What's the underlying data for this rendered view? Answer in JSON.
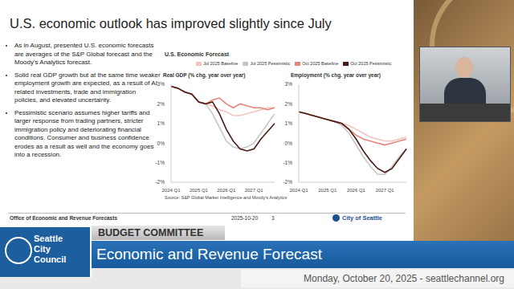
{
  "slide": {
    "title": "U.S. economic outlook has improved slightly since July",
    "bullets": [
      "As in August, presented U.S. economic forecasts are averages of the S&P Global forecast and the Moody's Analytics forecast.",
      "Solid real GDP growth but at the same time weaker employment growth are expected, as a result of AI related investments, trade and immigration policies, and elevated uncertainty.",
      "Pessimistic scenario assumes higher tariffs and larger response from trading partners, stricter immigration policy and deteriorating financial conditions. Consumer and business confidence erodes as a result as well and the economy goes into a recession."
    ],
    "panel_title": "U.S. Economic Forecast",
    "source": "Source: S&P Global Market Intelligence and Moody's Analytics",
    "footer": {
      "office": "Office of Economic and Revenue Forecasts",
      "date": "2025-10-20",
      "page": "3",
      "logo": "City of Seattle"
    }
  },
  "broadcast": {
    "logo": "Seattle City Council",
    "committee": "BUDGET COMMITTEE",
    "headline": "Economic and Revenue Forecast",
    "date_line": "Monday, October 20, 2025 - seattlechannel.org"
  },
  "chart_data": [
    {
      "type": "line",
      "title": "Real GDP (% chg. year over year)",
      "categories": [
        "2024 Q1",
        null,
        null,
        null,
        "2025 Q1",
        null,
        null,
        null,
        "2026 Q1",
        null,
        null,
        null,
        "2027 Q1",
        null,
        null,
        null
      ],
      "series": [
        {
          "name": "Jul 2025 Baseline",
          "color": "#f3c4bf",
          "values": [
            2.9,
            2.8,
            2.6,
            2.5,
            2.1,
            2.0,
            1.9,
            1.7,
            1.6,
            1.4,
            1.4,
            1.5,
            1.6,
            1.7,
            1.8,
            1.8
          ]
        },
        {
          "name": "Jul 2025 Pessimistic",
          "color": "#c6c6c6",
          "values": [
            2.9,
            2.8,
            2.6,
            2.5,
            2.1,
            2.0,
            1.5,
            0.8,
            0.1,
            -0.2,
            -0.3,
            -0.2,
            0.0,
            0.5,
            1.0,
            1.5
          ]
        },
        {
          "name": "Oct 2025 Baseline",
          "color": "#e8847b",
          "values": [
            2.9,
            2.8,
            2.6,
            2.5,
            2.1,
            2.0,
            2.2,
            2.3,
            2.0,
            1.8,
            2.0,
            1.9,
            1.8,
            1.8,
            1.7,
            1.8
          ]
        },
        {
          "name": "Oct 2025 Pessimistic",
          "color": "#4a1c15",
          "values": [
            2.9,
            2.8,
            2.6,
            2.5,
            2.1,
            2.0,
            2.1,
            1.5,
            0.7,
            0.1,
            -0.3,
            -0.4,
            -0.3,
            0.2,
            0.6,
            1.0
          ]
        }
      ],
      "ylim": [
        -2,
        3
      ],
      "yticks": [
        {
          "value": 3,
          "label": "3%"
        },
        {
          "value": 2,
          "label": "2%"
        },
        {
          "value": 1,
          "label": "1%"
        },
        {
          "value": 0,
          "label": "0%"
        },
        {
          "value": -1,
          "label": "-1%"
        },
        {
          "value": -2,
          "label": "-2%"
        }
      ],
      "grid": false,
      "legend": "top"
    },
    {
      "type": "line",
      "title": "Employment (% chg. year over year)",
      "categories": [
        "2024 Q1",
        null,
        null,
        null,
        "2025 Q1",
        null,
        null,
        null,
        "2026 Q1",
        null,
        null,
        null,
        "2027 Q1",
        null,
        null,
        null
      ],
      "series": [
        {
          "name": "Jul 2025 Baseline",
          "color": "#f3c4bf",
          "values": [
            1.6,
            1.5,
            1.4,
            1.3,
            1.2,
            1.1,
            1.0,
            0.9,
            0.7,
            0.5,
            0.3,
            0.2,
            0.1,
            0.1,
            0.2,
            0.3
          ]
        },
        {
          "name": "Jul 2025 Pessimistic",
          "color": "#c6c6c6",
          "values": [
            1.6,
            1.5,
            1.4,
            1.3,
            1.2,
            1.1,
            0.9,
            0.5,
            -0.1,
            -0.7,
            -1.2,
            -1.6,
            -1.6,
            -1.2,
            -0.7,
            -0.3
          ]
        },
        {
          "name": "Oct 2025 Baseline",
          "color": "#e8847b",
          "values": [
            1.6,
            1.5,
            1.4,
            1.3,
            1.2,
            1.1,
            1.0,
            0.7,
            0.4,
            0.2,
            0.1,
            0.0,
            -0.1,
            0.0,
            0.1,
            0.2
          ]
        },
        {
          "name": "Oct 2025 Pessimistic",
          "color": "#4a1c15",
          "values": [
            1.6,
            1.5,
            1.4,
            1.3,
            1.2,
            1.1,
            1.0,
            0.7,
            0.2,
            -0.4,
            -0.9,
            -1.3,
            -1.5,
            -1.3,
            -0.8,
            -0.3
          ]
        }
      ],
      "ylim": [
        -2,
        3
      ],
      "yticks": [
        {
          "value": 3,
          "label": "3%"
        },
        {
          "value": 2,
          "label": "2%"
        },
        {
          "value": 1,
          "label": "1%"
        },
        {
          "value": 0,
          "label": "0%"
        },
        {
          "value": -1,
          "label": "-1%"
        },
        {
          "value": -2,
          "label": "-2%"
        }
      ],
      "grid": false,
      "legend": "top"
    }
  ]
}
